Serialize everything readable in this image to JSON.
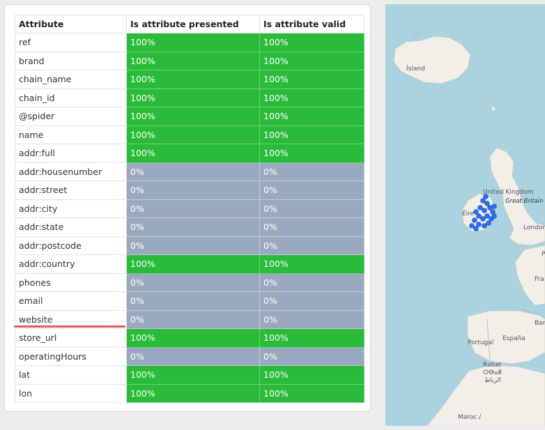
{
  "table": {
    "headers": [
      "Attribute",
      "Is attribute presented",
      "Is attribute valid"
    ],
    "rows": [
      {
        "attribute": "ref",
        "presented": "100%",
        "valid": "100%",
        "status": "green"
      },
      {
        "attribute": "brand",
        "presented": "100%",
        "valid": "100%",
        "status": "green"
      },
      {
        "attribute": "chain_name",
        "presented": "100%",
        "valid": "100%",
        "status": "green"
      },
      {
        "attribute": "chain_id",
        "presented": "100%",
        "valid": "100%",
        "status": "green"
      },
      {
        "attribute": "@spider",
        "presented": "100%",
        "valid": "100%",
        "status": "green"
      },
      {
        "attribute": "name",
        "presented": "100%",
        "valid": "100%",
        "status": "green"
      },
      {
        "attribute": "addr:full",
        "presented": "100%",
        "valid": "100%",
        "status": "green"
      },
      {
        "attribute": "addr:housenumber",
        "presented": "0%",
        "valid": "0%",
        "status": "gray"
      },
      {
        "attribute": "addr:street",
        "presented": "0%",
        "valid": "0%",
        "status": "gray"
      },
      {
        "attribute": "addr:city",
        "presented": "0%",
        "valid": "0%",
        "status": "gray"
      },
      {
        "attribute": "addr:state",
        "presented": "0%",
        "valid": "0%",
        "status": "gray"
      },
      {
        "attribute": "addr:postcode",
        "presented": "0%",
        "valid": "0%",
        "status": "gray"
      },
      {
        "attribute": "addr:country",
        "presented": "100%",
        "valid": "100%",
        "status": "green"
      },
      {
        "attribute": "phones",
        "presented": "0%",
        "valid": "0%",
        "status": "gray"
      },
      {
        "attribute": "email",
        "presented": "0%",
        "valid": "0%",
        "status": "gray"
      },
      {
        "attribute": "website",
        "presented": "0%",
        "valid": "0%",
        "status": "gray"
      },
      {
        "attribute": "store_url",
        "presented": "100%",
        "valid": "100%",
        "status": "green"
      },
      {
        "attribute": "operatingHours",
        "presented": "0%",
        "valid": "0%",
        "status": "gray"
      },
      {
        "attribute": "lat",
        "presented": "100%",
        "valid": "100%",
        "status": "green"
      },
      {
        "attribute": "lon",
        "presented": "100%",
        "valid": "100%",
        "status": "green"
      }
    ]
  },
  "map": {
    "labels": {
      "island": "Ísland",
      "uk": "United Kingdom",
      "great_britain": "Great Britain",
      "eire": "Éire",
      "london": "London",
      "portugal": "Portugal",
      "espana": "España",
      "rabat": "Rabat",
      "rabat_tifinagh": "ⵔⴱⴰⵟ",
      "rabat_arabic": "الرباط",
      "maroc": "Maroc /",
      "edge_fr": "Fra",
      "edge_bar": "Bar",
      "edge_p": "P"
    }
  },
  "colors": {
    "green": "#2bbb3a",
    "gray": "#9aa9bf",
    "sea": "#aad3df",
    "land": "#f2efe9",
    "marker": "#2a6ef0",
    "highlight_underline": "#e25a5a"
  }
}
